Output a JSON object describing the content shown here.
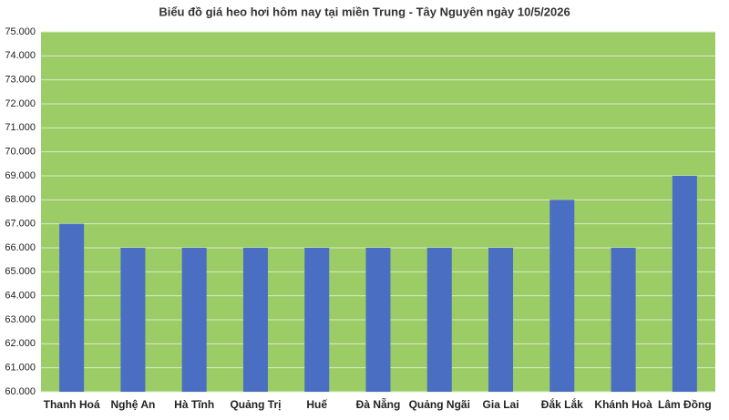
{
  "chart_data": {
    "type": "bar",
    "title": "Biểu đồ giá heo hơi hôm nay tại miền Trung - Tây Nguyên ngày 10/5/2026",
    "categories": [
      "Thanh Hoá",
      "Nghệ An",
      "Hà Tĩnh",
      "Quảng Trị",
      "Huế",
      "Đà Nẵng",
      "Quảng Ngãi",
      "Gia Lai",
      "Đắk Lắk",
      "Khánh Hoà",
      "Lâm Đồng"
    ],
    "values": [
      67000,
      66000,
      66000,
      66000,
      66000,
      66000,
      66000,
      66000,
      68000,
      66000,
      69000
    ],
    "color": "#4a6ec1",
    "plot_background": "#9ccc65",
    "ylim": [
      60000,
      75000
    ],
    "yticks": [
      {
        "value": 60000,
        "label": "60.000"
      },
      {
        "value": 61000,
        "label": "61.000"
      },
      {
        "value": 62000,
        "label": "62.000"
      },
      {
        "value": 63000,
        "label": "63.000"
      },
      {
        "value": 64000,
        "label": "64.000"
      },
      {
        "value": 65000,
        "label": "65.000"
      },
      {
        "value": 66000,
        "label": "66.000"
      },
      {
        "value": 67000,
        "label": "67.000"
      },
      {
        "value": 68000,
        "label": "68.000"
      },
      {
        "value": 69000,
        "label": "69.000"
      },
      {
        "value": 70000,
        "label": "70.000"
      },
      {
        "value": 71000,
        "label": "71.000"
      },
      {
        "value": 72000,
        "label": "72.000"
      },
      {
        "value": 73000,
        "label": "73.000"
      },
      {
        "value": 74000,
        "label": "74.000"
      },
      {
        "value": 75000,
        "label": "75.000"
      }
    ],
    "grid": true
  }
}
